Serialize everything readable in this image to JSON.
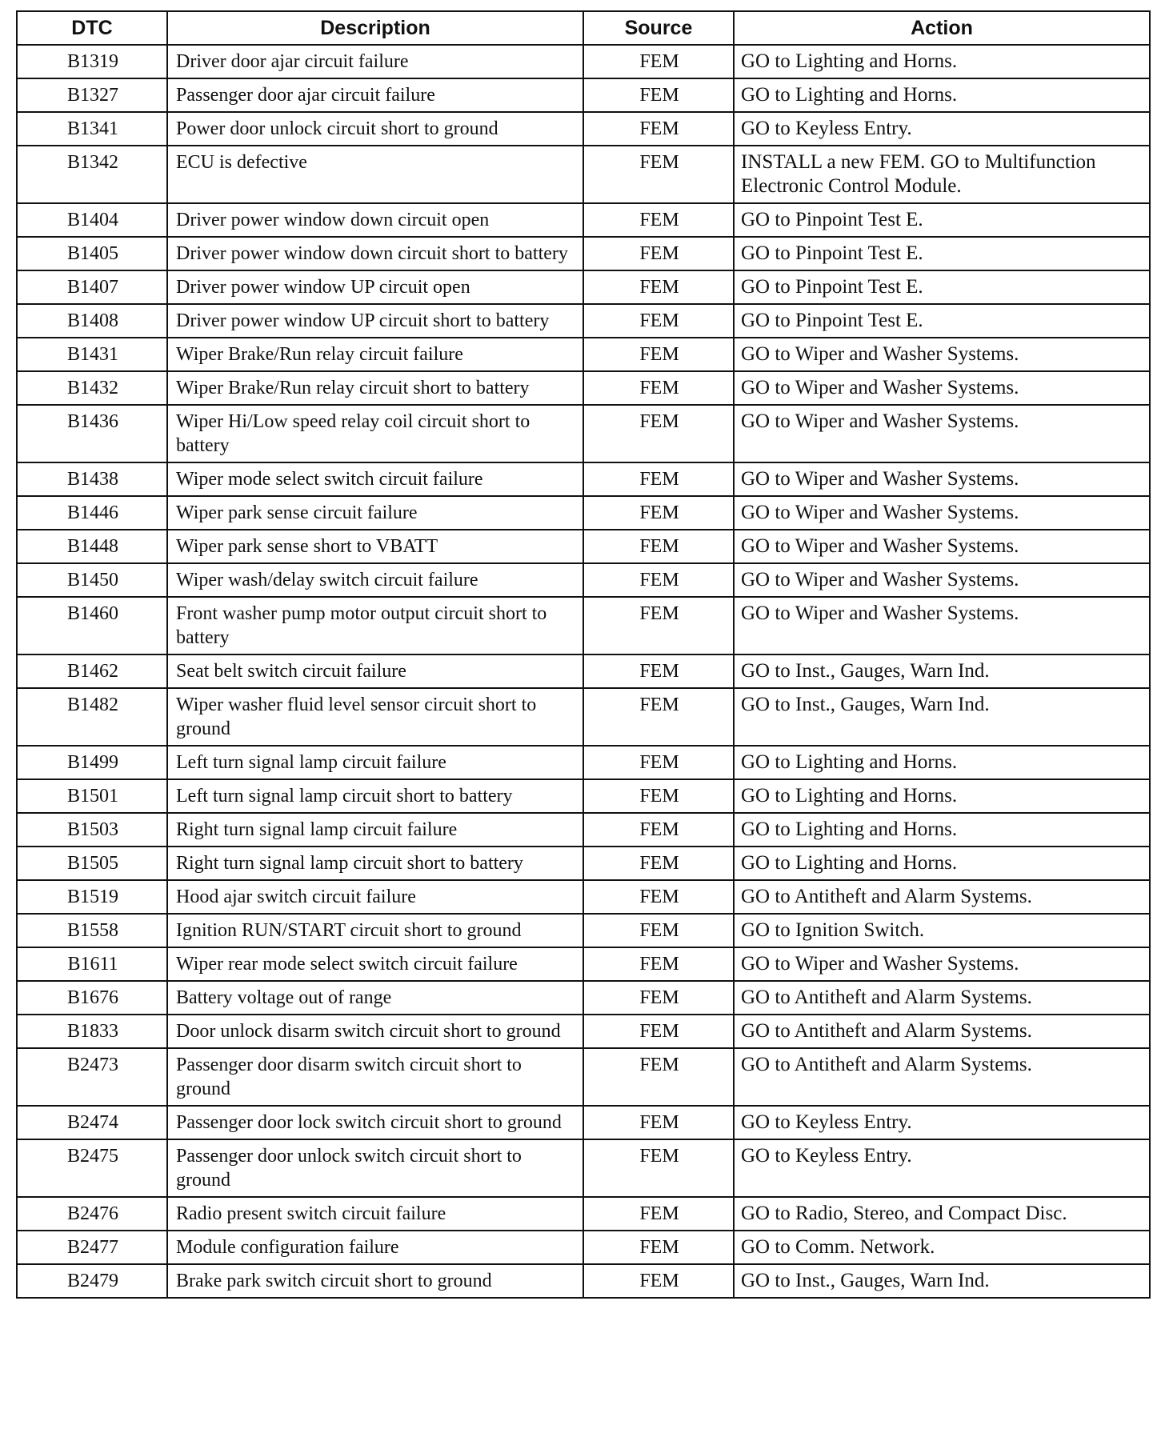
{
  "headers": {
    "dtc": "DTC",
    "description": "Description",
    "source": "Source",
    "action": "Action"
  },
  "rows": [
    {
      "dtc": "B1319",
      "description": "Driver door ajar circuit failure",
      "source": "FEM",
      "action": "GO to  Lighting and Horns."
    },
    {
      "dtc": "B1327",
      "description": "Passenger door ajar circuit failure",
      "source": "FEM",
      "action": "GO to  Lighting and Horns."
    },
    {
      "dtc": "B1341",
      "description": "Power door unlock circuit short to ground",
      "source": "FEM",
      "action": "GO to  Keyless Entry."
    },
    {
      "dtc": "B1342",
      "description": "ECU is defective",
      "source": "FEM",
      "action": "INSTALL a new FEM. GO to Multifunction Electronic Control Module."
    },
    {
      "dtc": "B1404",
      "description": "Driver power window down circuit open",
      "source": "FEM",
      "action": "GO to Pinpoint Test E."
    },
    {
      "dtc": "B1405",
      "description": "Driver power window down circuit short to battery",
      "source": "FEM",
      "action": "GO to Pinpoint Test E."
    },
    {
      "dtc": "B1407",
      "description": "Driver power window UP circuit open",
      "source": "FEM",
      "action": "GO to Pinpoint Test E."
    },
    {
      "dtc": "B1408",
      "description": "Driver power window UP circuit short to battery",
      "source": "FEM",
      "action": "GO to Pinpoint Test E."
    },
    {
      "dtc": "B1431",
      "description": "Wiper Brake/Run relay circuit failure",
      "source": "FEM",
      "action": "GO to Wiper and Washer Systems."
    },
    {
      "dtc": "B1432",
      "description": "Wiper Brake/Run relay circuit short to battery",
      "source": "FEM",
      "action": "GO to  Wiper and Washer Systems."
    },
    {
      "dtc": "B1436",
      "description": "Wiper Hi/Low speed relay coil circuit short to battery",
      "source": "FEM",
      "action": "GO to  Wiper and Washer Systems."
    },
    {
      "dtc": "B1438",
      "description": "Wiper mode select switch circuit failure",
      "source": "FEM",
      "action": "GO to  Wiper and Washer Systems."
    },
    {
      "dtc": "B1446",
      "description": "Wiper park sense circuit failure",
      "source": "FEM",
      "action": "GO to  Wiper and Washer Systems."
    },
    {
      "dtc": "B1448",
      "description": "Wiper park sense short to VBATT",
      "source": "FEM",
      "action": "GO to  Wiper and Washer Systems."
    },
    {
      "dtc": "B1450",
      "description": "Wiper wash/delay switch circuit failure",
      "source": "FEM",
      "action": "GO to  Wiper and Washer Systems."
    },
    {
      "dtc": "B1460",
      "description": "Front washer pump motor output circuit short to battery",
      "source": "FEM",
      "action": "GO to  Wiper and Washer Systems."
    },
    {
      "dtc": "B1462",
      "description": "Seat belt switch circuit failure",
      "source": "FEM",
      "action": "GO to  Inst., Gauges, Warn Ind."
    },
    {
      "dtc": "B1482",
      "description": "Wiper washer fluid level sensor circuit short to ground",
      "source": "FEM",
      "action": "GO to  Inst., Gauges, Warn Ind."
    },
    {
      "dtc": "B1499",
      "description": "Left turn signal lamp circuit failure",
      "source": "FEM",
      "action": "GO to  Lighting and Horns."
    },
    {
      "dtc": "B1501",
      "description": "Left turn signal lamp circuit short to battery",
      "source": "FEM",
      "action": "GO to  Lighting and Horns."
    },
    {
      "dtc": "B1503",
      "description": "Right turn signal lamp circuit failure",
      "source": "FEM",
      "action": "GO to  Lighting and Horns."
    },
    {
      "dtc": "B1505",
      "description": "Right turn signal lamp circuit short to battery",
      "source": "FEM",
      "action": "GO to  Lighting and Horns."
    },
    {
      "dtc": "B1519",
      "description": "Hood ajar switch circuit failure",
      "source": "FEM",
      "action": "GO to  Antitheft and Alarm Systems."
    },
    {
      "dtc": "B1558",
      "description": "Ignition RUN/START circuit short to ground",
      "source": "FEM",
      "action": "GO to  Ignition Switch."
    },
    {
      "dtc": "B1611",
      "description": "Wiper rear mode select switch circuit failure",
      "source": "FEM",
      "action": "GO to  Wiper and Washer Systems."
    },
    {
      "dtc": "B1676",
      "description": "Battery voltage out of range",
      "source": "FEM",
      "action": "GO to  Antitheft and Alarm Systems."
    },
    {
      "dtc": "B1833",
      "description": "Door unlock disarm switch circuit short to ground",
      "source": "FEM",
      "action": "GO to  Antitheft and Alarm Systems."
    },
    {
      "dtc": "B2473",
      "description": "Passenger door disarm switch circuit short to ground",
      "source": "FEM",
      "action": "GO to  Antitheft and Alarm Systems."
    },
    {
      "dtc": "B2474",
      "description": "Passenger door lock switch circuit short to ground",
      "source": "FEM",
      "action": "GO to  Keyless Entry."
    },
    {
      "dtc": "B2475",
      "description": "Passenger door unlock switch circuit short to ground",
      "source": "FEM",
      "action": "GO to  Keyless Entry."
    },
    {
      "dtc": "B2476",
      "description": "Radio present switch circuit failure",
      "source": "FEM",
      "action": "GO to Radio, Stereo, and Compact Disc."
    },
    {
      "dtc": "B2477",
      "description": "Module configuration failure",
      "source": "FEM",
      "action": "GO to Comm. Network."
    },
    {
      "dtc": "B2479",
      "description": "Brake park switch circuit short to ground",
      "source": "FEM",
      "action": "GO to  Inst., Gauges, Warn Ind."
    }
  ]
}
